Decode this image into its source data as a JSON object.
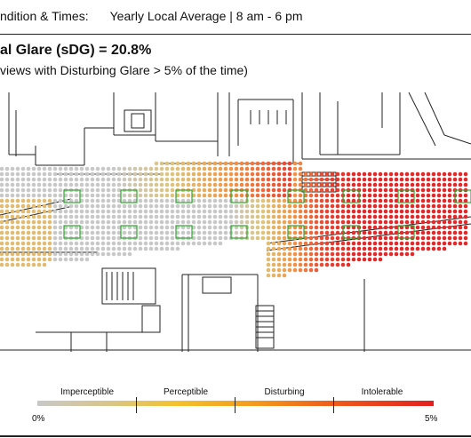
{
  "header": {
    "condition_label": "ndition & Times:",
    "condition_value": "Yearly Local Average | 8 am - 6 pm"
  },
  "title": "al Glare (sDG) = 20.8%",
  "subtitle": "views with Disturbing Glare > 5% of the time)",
  "legend": {
    "categories": [
      "Imperceptible",
      "Perceptible",
      "Disturbing",
      "Intolerable"
    ],
    "min_label": "0%",
    "max_label": "5%",
    "colors": [
      "#c8c8c8",
      "#f3c22c",
      "#f39a1d",
      "#e31f1f"
    ]
  }
}
